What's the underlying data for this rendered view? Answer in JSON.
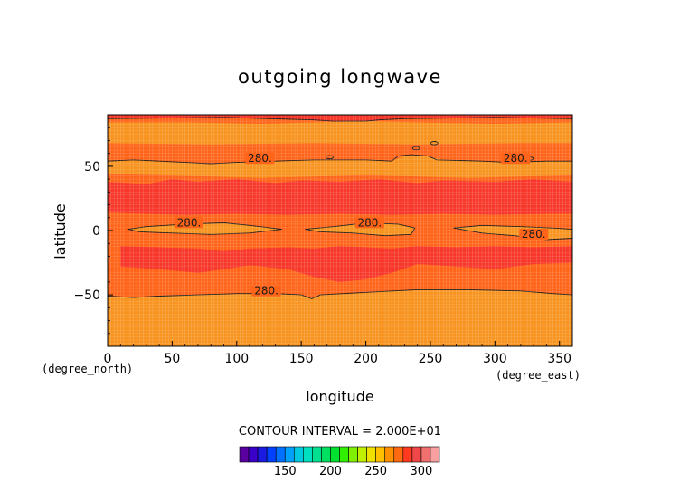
{
  "chart_data": {
    "type": "heatmap",
    "title": "outgoing longwave",
    "xlabel": "longitude",
    "ylabel": "latitude",
    "x_unit": "(degree_east)",
    "y_unit": "(degree_north)",
    "xlim": [
      0,
      360
    ],
    "ylim": [
      -90,
      90
    ],
    "x_ticks": [
      0,
      50,
      100,
      150,
      200,
      250,
      300,
      350
    ],
    "y_ticks": [
      -50,
      0,
      50
    ],
    "x_tick_labels": [
      "0",
      "50",
      "100",
      "150",
      "200",
      "250",
      "300",
      "350"
    ],
    "y_tick_labels": [
      "−50",
      "0",
      "50"
    ],
    "contour_interval_text": "CONTOUR INTERVAL = 2.000E+01",
    "contour_level": 280,
    "contour_labels": [
      {
        "text": "280.",
        "lon": 118,
        "lat": 54
      },
      {
        "text": "280.",
        "lon": 316,
        "lat": 54
      },
      {
        "text": "280.",
        "lon": 63,
        "lat": 4
      },
      {
        "text": "280.",
        "lon": 203,
        "lat": 4
      },
      {
        "text": "280.",
        "lon": 330,
        "lat": -5
      },
      {
        "text": "280.",
        "lon": 123,
        "lat": -49
      }
    ],
    "bands": [
      {
        "lat_from": 90,
        "lat_to": 84,
        "level": "300+"
      },
      {
        "lat_from": 84,
        "lat_to": 54,
        "level": "280-300"
      },
      {
        "lat_from": 54,
        "lat_to": 40,
        "level": "280-300"
      },
      {
        "lat_from": 40,
        "lat_to": 12,
        "level": "300+"
      },
      {
        "lat_from": 12,
        "lat_to": 4,
        "level": "280-300"
      },
      {
        "lat_from": 4,
        "lat_to": -4,
        "level": "260-280"
      },
      {
        "lat_from": -4,
        "lat_to": -14,
        "level": "280-300"
      },
      {
        "lat_from": -14,
        "lat_to": -40,
        "level": "300+ (patchy)"
      },
      {
        "lat_from": -40,
        "lat_to": -50,
        "level": "280-300"
      },
      {
        "lat_from": -50,
        "lat_to": -90,
        "level": "260-280"
      }
    ],
    "colorbar": {
      "min": 100,
      "max": 320,
      "step": 10,
      "ticks": [
        150,
        200,
        250,
        300
      ],
      "tick_labels": [
        "150",
        "200",
        "250",
        "300"
      ]
    }
  },
  "colors": {
    "level_260_280": "#F7931E",
    "level_280_300": "#FF6419",
    "level_300_plus": "#F7372A",
    "contour": "#1a1a1a",
    "grid": "#ffffff"
  }
}
